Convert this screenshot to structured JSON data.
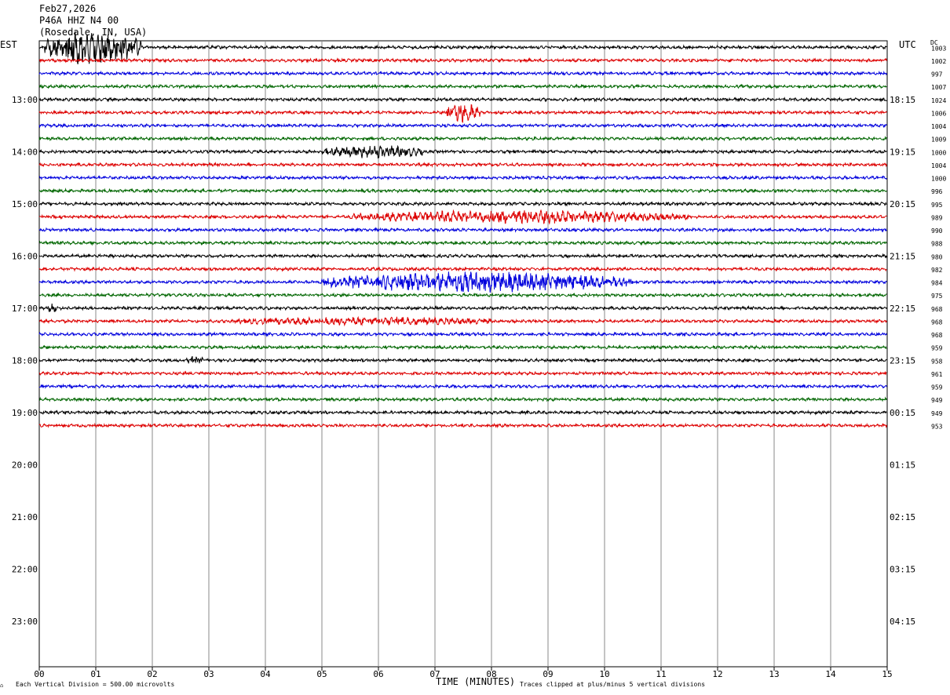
{
  "header": {
    "date": "Feb27,2026",
    "station": "P46A HHZ N4 00",
    "location": "(Rosedale, IN, USA)"
  },
  "chart_data": {
    "type": "line",
    "subtype": "helicorder",
    "left_timezone": "EST",
    "right_timezone": "UTC",
    "dc_header": "DC",
    "xlabel": "TIME (MINUTES)",
    "x_ticks": [
      "00",
      "01",
      "02",
      "03",
      "04",
      "05",
      "06",
      "07",
      "08",
      "09",
      "10",
      "11",
      "12",
      "13",
      "14",
      "15"
    ],
    "xlim": [
      0,
      15
    ],
    "rows_total": 48,
    "rows_with_data": 30,
    "row_minutes": 15,
    "grid": "vertical lines every minute",
    "left_hour_labels": [
      "13:00",
      "14:00",
      "15:00",
      "16:00",
      "17:00",
      "18:00",
      "19:00",
      "20:00",
      "21:00",
      "22:00",
      "23:00"
    ],
    "right_hour_labels": [
      "18:15",
      "19:15",
      "20:15",
      "21:15",
      "22:15",
      "23:15",
      "00:15",
      "01:15",
      "02:15",
      "03:15",
      "04:15"
    ],
    "trace_colors": [
      "#000000",
      "#dd0000",
      "#0000dd",
      "#006600"
    ],
    "dc_offsets": [
      "1003",
      "1002",
      "997",
      "1007",
      "1024",
      "1006",
      "1004",
      "1009",
      "1000",
      "1004",
      "1000",
      "996",
      "995",
      "989",
      "990",
      "988",
      "980",
      "982",
      "984",
      "975",
      "968",
      "968",
      "968",
      "959",
      "958",
      "961",
      "959",
      "949",
      "949",
      "953"
    ],
    "footer_left": "Each Vertical Division =  500.00 microvolts",
    "footer_right": "Traces clipped at plus/minus 5 vertical divisions",
    "footer_mark": "⌂",
    "events": [
      {
        "row": 0,
        "start_min": 0.1,
        "end_min": 1.8,
        "amplitude": "clipped"
      },
      {
        "row": 5,
        "start_min": 7.2,
        "end_min": 7.8,
        "amplitude": "high"
      },
      {
        "row": 8,
        "start_min": 5.0,
        "end_min": 6.8,
        "amplitude": "medium"
      },
      {
        "row": 13,
        "start_min": 5.5,
        "end_min": 11.5,
        "amplitude": "medium"
      },
      {
        "row": 18,
        "start_min": 5.0,
        "end_min": 10.5,
        "amplitude": "high"
      },
      {
        "row": 20,
        "start_min": 0.15,
        "end_min": 0.3,
        "amplitude": "medium"
      },
      {
        "row": 21,
        "start_min": 3.5,
        "end_min": 8.0,
        "amplitude": "low"
      },
      {
        "row": 24,
        "start_min": 2.6,
        "end_min": 2.9,
        "amplitude": "low"
      }
    ]
  }
}
